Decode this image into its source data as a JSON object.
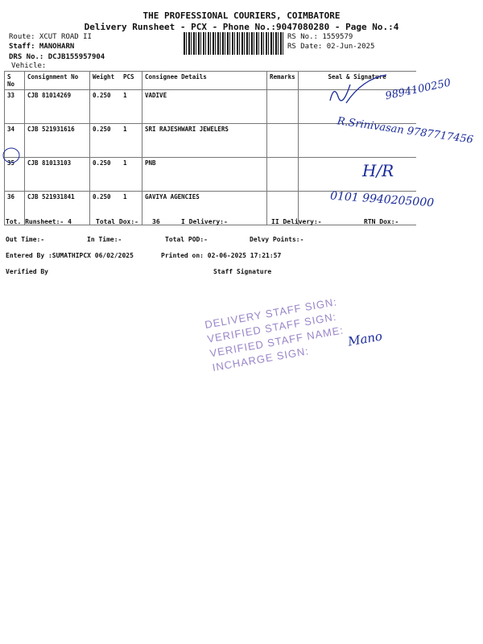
{
  "header": {
    "company": "THE PROFESSIONAL COURIERS, COIMBATORE",
    "subtitle": "Delivery Runsheet - PCX - Phone No.:9047080280 - Page No.:4",
    "route": "Route: XCUT ROAD II",
    "staff": "Staff: MANOHARN",
    "drs": "DRS No.: DCJB155957904",
    "vehicle": "Vehicle:",
    "rs_no": "RS No.: 1559579",
    "rs_date": "RS Date: 02-Jun-2025"
  },
  "table": {
    "columns": [
      "S No",
      "Consignment No",
      "Weight",
      "PCS",
      "Consignee Details",
      "Remarks",
      "Seal & Signature"
    ],
    "rows": [
      {
        "sno": "33",
        "cn": "CJB 81014269",
        "weight": "0.250",
        "pcs": "1",
        "consignee": "VADIVE",
        "remarks": "",
        "handwriting": "9894100250"
      },
      {
        "sno": "34",
        "cn": "CJB 521931616",
        "weight": "0.250",
        "pcs": "1",
        "consignee": "SRI RAJESHWARI JEWELERS",
        "remarks": "",
        "handwriting": "R.Srinivasan 9787717456"
      },
      {
        "sno": "35",
        "cn": "CJB 81013103",
        "weight": "0.250",
        "pcs": "1",
        "consignee": "PNB",
        "remarks": "",
        "handwriting": "H/R"
      },
      {
        "sno": "36",
        "cn": "CJB 521931841",
        "weight": "0.250",
        "pcs": "1",
        "consignee": "GAVIYA AGENCIES",
        "remarks": "",
        "handwriting": "0101 9940205000"
      }
    ]
  },
  "footer": {
    "tot_runsheet": "Tot. Runsheet:- 4",
    "total_dox": "Total Dox:-",
    "total_dox_val": "36",
    "i_delivery": "I Delivery:-",
    "ii_delivery": "II Delivery:-",
    "rtn_dox": "RTN Dox:-",
    "out_time": "Out Time:-",
    "in_time": "In Time:-",
    "total_pod": "Total POD:-",
    "delvy_points": "Delvy Points:-",
    "entered_by": "Entered By :SUMATHIPCX 06/02/2025",
    "printed_on": "Printed on: 02-06-2025 17:21:57",
    "verified_by": "Verified By",
    "staff_signature": "Staff Signature"
  },
  "stamp": {
    "lines": [
      "DELIVERY STAFF SIGN:",
      "VERIFIED STAFF SIGN:",
      "VERIFIED STAFF NAME:",
      "INCHARGE SIGN:"
    ],
    "name_hand": "Mano",
    "color": "#9a86c8"
  }
}
